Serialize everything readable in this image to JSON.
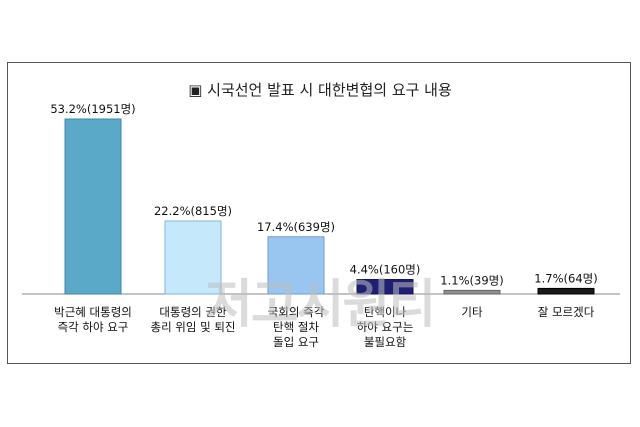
{
  "chart_data": {
    "type": "bar",
    "title": "▣ 시국선언 발표 시 대한변협의 요구 내용",
    "categories": [
      [
        "박근혜 대통령의",
        "즉각 하야 요구"
      ],
      [
        "대통령의 권한",
        "총리 위임 및 퇴진"
      ],
      [
        "국회의 즉각",
        "탄핵 절차",
        "돌입 요구"
      ],
      [
        "탄핵이나",
        "하야 요구는",
        "불필요함"
      ],
      [
        "기타"
      ],
      [
        "잘 모르겠다"
      ]
    ],
    "values": [
      53.2,
      22.2,
      17.4,
      4.4,
      1.1,
      1.7
    ],
    "data_labels": [
      "53.2%(1951명)",
      "22.2%(815명)",
      "17.4%(639명)",
      "4.4%(160명)",
      "1.1%(39명)",
      "1.7%(64명)"
    ],
    "bar_colors": [
      "#5aa9c9",
      "#c6e8fb",
      "#99c6f0",
      "#1f1f73",
      "#8f8f8f",
      "#1a1a1a"
    ],
    "bar_strokes": [
      "#3d88a8",
      "#7fb8d8",
      "#6b9fd0",
      "#101050",
      "#666666",
      "#000000"
    ],
    "ylim": [
      0,
      53.2
    ],
    "grid": false,
    "legend": "none"
  },
  "watermark": "저고시원티"
}
